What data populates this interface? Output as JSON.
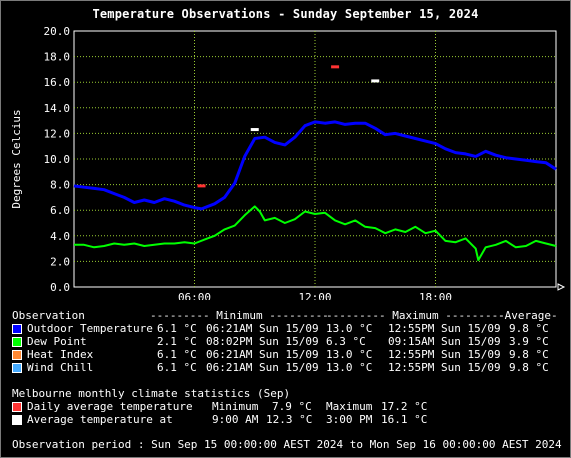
{
  "title": "Temperature Observations - Sunday September 15, 2024",
  "chart_data": {
    "type": "line",
    "ylabel": "Degrees Celcius",
    "ylim": [
      0,
      20
    ],
    "xlim": [
      0,
      24
    ],
    "grid": true,
    "y_ticks": [
      "0.0",
      "2.0",
      "4.0",
      "6.0",
      "8.0",
      "10.0",
      "12.0",
      "14.0",
      "16.0",
      "18.0",
      "20.0"
    ],
    "y_tick_values": [
      0,
      2,
      4,
      6,
      8,
      10,
      12,
      14,
      16,
      18,
      20
    ],
    "x_ticks": [
      "06:00",
      "12:00",
      "18:00"
    ],
    "x_tick_values": [
      6,
      12,
      18
    ],
    "series": [
      {
        "name": "Outdoor Temperature",
        "color": "#0000ff",
        "x": [
          0,
          0.5,
          1,
          1.5,
          2,
          2.5,
          3,
          3.5,
          4,
          4.5,
          5,
          5.5,
          6,
          6.35,
          7,
          7.5,
          8,
          8.5,
          9,
          9.5,
          10,
          10.5,
          11,
          11.5,
          12,
          12.5,
          13,
          13.5,
          14,
          14.5,
          15,
          15.5,
          16,
          16.5,
          17,
          17.5,
          18,
          18.5,
          19,
          19.5,
          20,
          20.5,
          21,
          21.5,
          22,
          22.5,
          23,
          23.5,
          24
        ],
        "y": [
          7.9,
          7.8,
          7.7,
          7.6,
          7.3,
          7.0,
          6.6,
          6.8,
          6.6,
          6.9,
          6.7,
          6.4,
          6.2,
          6.1,
          6.5,
          7.0,
          8.1,
          10.2,
          11.6,
          11.7,
          11.3,
          11.1,
          11.7,
          12.6,
          12.9,
          12.8,
          12.9,
          12.7,
          12.8,
          12.8,
          12.4,
          11.9,
          12.0,
          11.8,
          11.6,
          11.4,
          11.2,
          10.8,
          10.5,
          10.4,
          10.2,
          10.6,
          10.3,
          10.1,
          10.0,
          9.9,
          9.8,
          9.7,
          9.2
        ]
      },
      {
        "name": "Dew Point",
        "color": "#00ff00",
        "x": [
          0,
          0.5,
          1,
          1.5,
          2,
          2.5,
          3,
          3.5,
          4,
          4.5,
          5,
          5.5,
          6,
          6.5,
          7,
          7.5,
          8,
          8.5,
          9,
          9.25,
          9.5,
          10,
          10.5,
          11,
          11.5,
          12,
          12.5,
          13,
          13.5,
          14,
          14.5,
          15,
          15.5,
          16,
          16.5,
          17,
          17.5,
          18,
          18.5,
          19,
          19.5,
          20,
          20.13,
          20.5,
          21,
          21.5,
          22,
          22.5,
          23,
          23.5,
          24
        ],
        "y": [
          3.3,
          3.3,
          3.1,
          3.2,
          3.4,
          3.3,
          3.4,
          3.2,
          3.3,
          3.4,
          3.4,
          3.5,
          3.4,
          3.7,
          4.0,
          4.5,
          4.8,
          5.6,
          6.3,
          5.9,
          5.2,
          5.4,
          5.0,
          5.3,
          5.9,
          5.7,
          5.8,
          5.2,
          4.9,
          5.2,
          4.7,
          4.6,
          4.2,
          4.5,
          4.3,
          4.7,
          4.2,
          4.4,
          3.6,
          3.5,
          3.8,
          3.0,
          2.1,
          3.1,
          3.3,
          3.6,
          3.1,
          3.2,
          3.6,
          3.4,
          3.2
        ]
      }
    ],
    "climate_markers": [
      {
        "name": "Daily average temperature (Minimum)",
        "x": 6.35,
        "y": 7.9,
        "color": "#ff3333"
      },
      {
        "name": "Daily average temperature (Maximum)",
        "x": 13.0,
        "y": 17.2,
        "color": "#ff3333"
      },
      {
        "name": "Average temperature at 9:00 AM",
        "x": 9.0,
        "y": 12.3,
        "color": "#ffffff"
      },
      {
        "name": "Average temperature at 3:00 PM",
        "x": 15.0,
        "y": 16.1,
        "color": "#ffffff"
      }
    ]
  },
  "colors": {
    "outdoor": "#0000ff",
    "dew": "#00ff00",
    "heat": "#ff8833",
    "chill": "#44aaff",
    "daily": "#ff3333",
    "avg": "#ffffff",
    "grid": "#9acd32"
  },
  "legend": {
    "header": {
      "observation": "Observation",
      "minimum": "--------- Minimum ---------",
      "maximum": "--------- Maximum ---------",
      "average": "-Average-"
    },
    "rows": [
      {
        "label": "Outdoor Temperature",
        "min": "6.1 °C",
        "min_time": "06:21AM Sun 15/09",
        "max": "13.0 °C",
        "max_time": "12:55PM Sun 15/09",
        "avg": "9.8 °C"
      },
      {
        "label": "Dew Point",
        "min": "2.1 °C",
        "min_time": "08:02PM Sun 15/09",
        "max": "6.3 °C",
        "max_time": "09:15AM Sun 15/09",
        "avg": "3.9 °C"
      },
      {
        "label": "Heat Index",
        "min": "6.1 °C",
        "min_time": "06:21AM Sun 15/09",
        "max": "13.0 °C",
        "max_time": "12:55PM Sun 15/09",
        "avg": "9.8 °C"
      },
      {
        "label": "Wind Chill",
        "min": "6.1 °C",
        "min_time": "06:21AM Sun 15/09",
        "max": "13.0 °C",
        "max_time": "12:55PM Sun 15/09",
        "avg": "9.8 °C"
      }
    ]
  },
  "climate": {
    "heading": "Melbourne monthly climate statistics (Sep)",
    "daily_label": "Daily average temperature",
    "daily_min_label": "Minimum",
    "daily_min": "7.9 °C",
    "daily_max_label": "Maximum",
    "daily_max": "17.2 °C",
    "avg_label": "Average temperature at",
    "avg_t1": "9:00 AM",
    "avg_v1": "12.3 °C",
    "avg_t2": "3:00 PM",
    "avg_v2": "16.1 °C"
  },
  "period": "Observation period : Sun Sep 15 00:00:00 AEST 2024 to Mon Sep 16 00:00:00 AEST 2024"
}
